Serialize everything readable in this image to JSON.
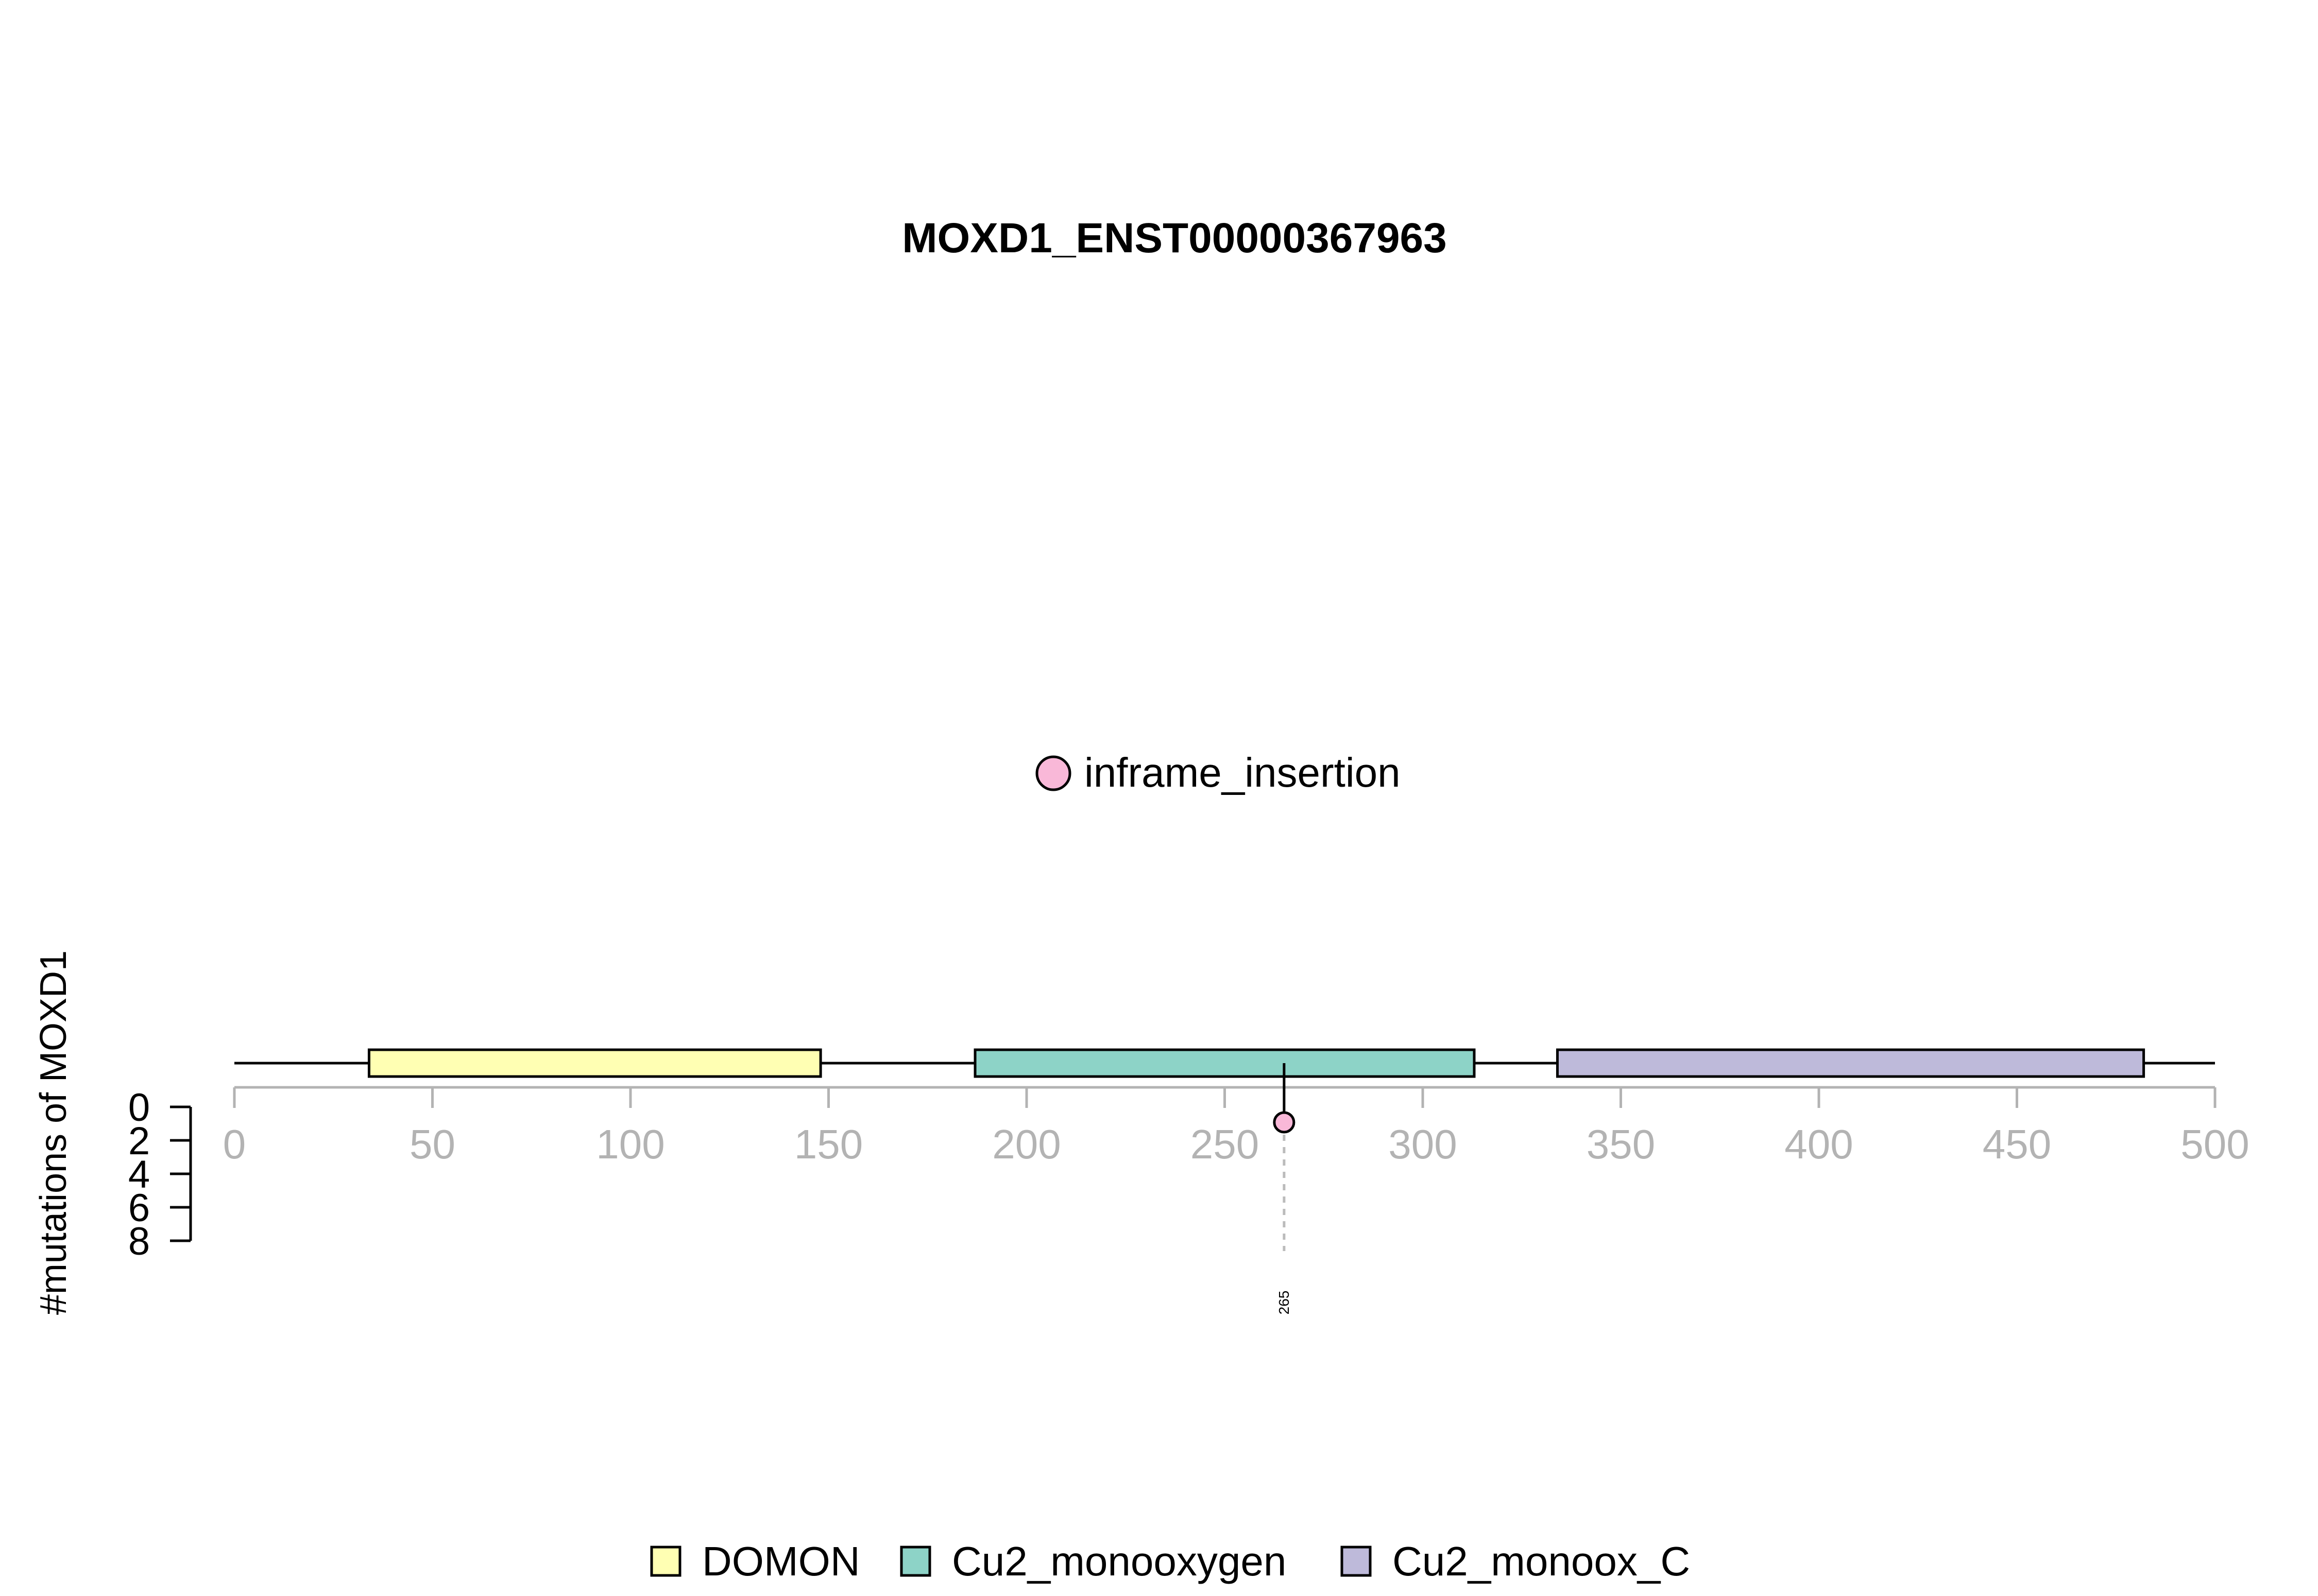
{
  "chart_data": {
    "type": "lollipop",
    "title": "MOXD1_ENST00000367963",
    "xlim": [
      0,
      500
    ],
    "x_ticks": [
      "0",
      "50",
      "100",
      "150",
      "200",
      "250",
      "300",
      "350",
      "400",
      "450",
      "500"
    ],
    "protein_length": 500,
    "ylabel": "#mutations of MOXD1",
    "y_ticks": [
      "0",
      "2",
      "4",
      "6",
      "8"
    ],
    "ylim": [
      0,
      8
    ],
    "domains": [
      {
        "name": "DOMON",
        "start": 34,
        "end": 148,
        "color": "#FFFFB3"
      },
      {
        "name": "Cu2_monooxygen",
        "start": 187,
        "end": 313,
        "color": "#8DD3C7"
      },
      {
        "name": "Cu2_monoox_C",
        "start": 334,
        "end": 482,
        "color": "#BEBADA"
      }
    ],
    "mutations": [
      {
        "position": 265,
        "label": "265",
        "count": 1,
        "type": "inframe_insertion",
        "color": "#F9B8D8"
      }
    ],
    "mutation_legend": [
      {
        "label": "inframe_insertion",
        "color": "#F9B8D8"
      }
    ],
    "domain_legend": [
      {
        "label": "DOMON",
        "color": "#FFFFB3"
      },
      {
        "label": "Cu2_monooxygen",
        "color": "#8DD3C7"
      },
      {
        "label": "Cu2_monoox_C",
        "color": "#BEBADA"
      }
    ]
  }
}
